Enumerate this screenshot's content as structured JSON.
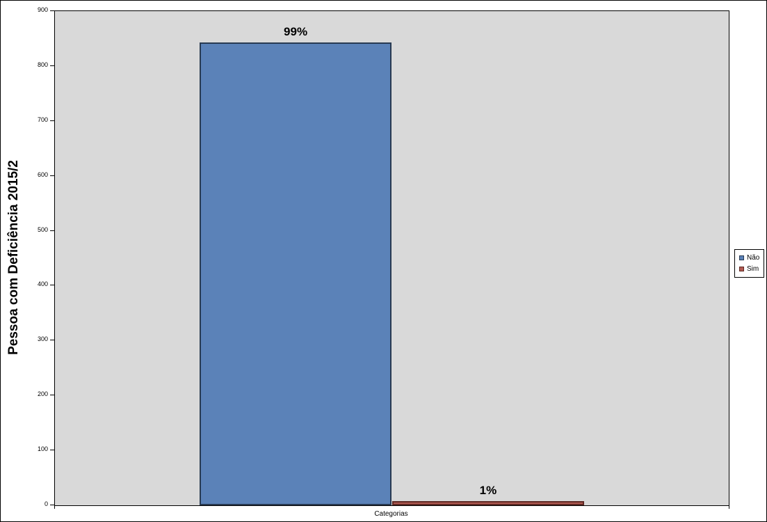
{
  "chart_data": {
    "type": "bar",
    "title": "",
    "categories": [
      "Categorias"
    ],
    "series": [
      {
        "key": "nao",
        "name": "Não",
        "value": 843,
        "percent_label": "99%",
        "color": "#5B82B8",
        "border_color": "#283A52"
      },
      {
        "key": "sim",
        "name": "Sim",
        "value": 7,
        "percent_label": "1%",
        "color": "#B05A52",
        "border_color": "#5E2823"
      }
    ],
    "xlabel": "Categorias",
    "ylabel": "Pessoa com Deficiência 2015/2",
    "ylim": [
      0,
      900
    ],
    "yticks": [
      0,
      100,
      200,
      300,
      400,
      500,
      600,
      700,
      800,
      900
    ],
    "grid": false,
    "legend_position": "right",
    "plot_bg": "#D9D9D9",
    "chart_bg": "#FFFFFF"
  }
}
